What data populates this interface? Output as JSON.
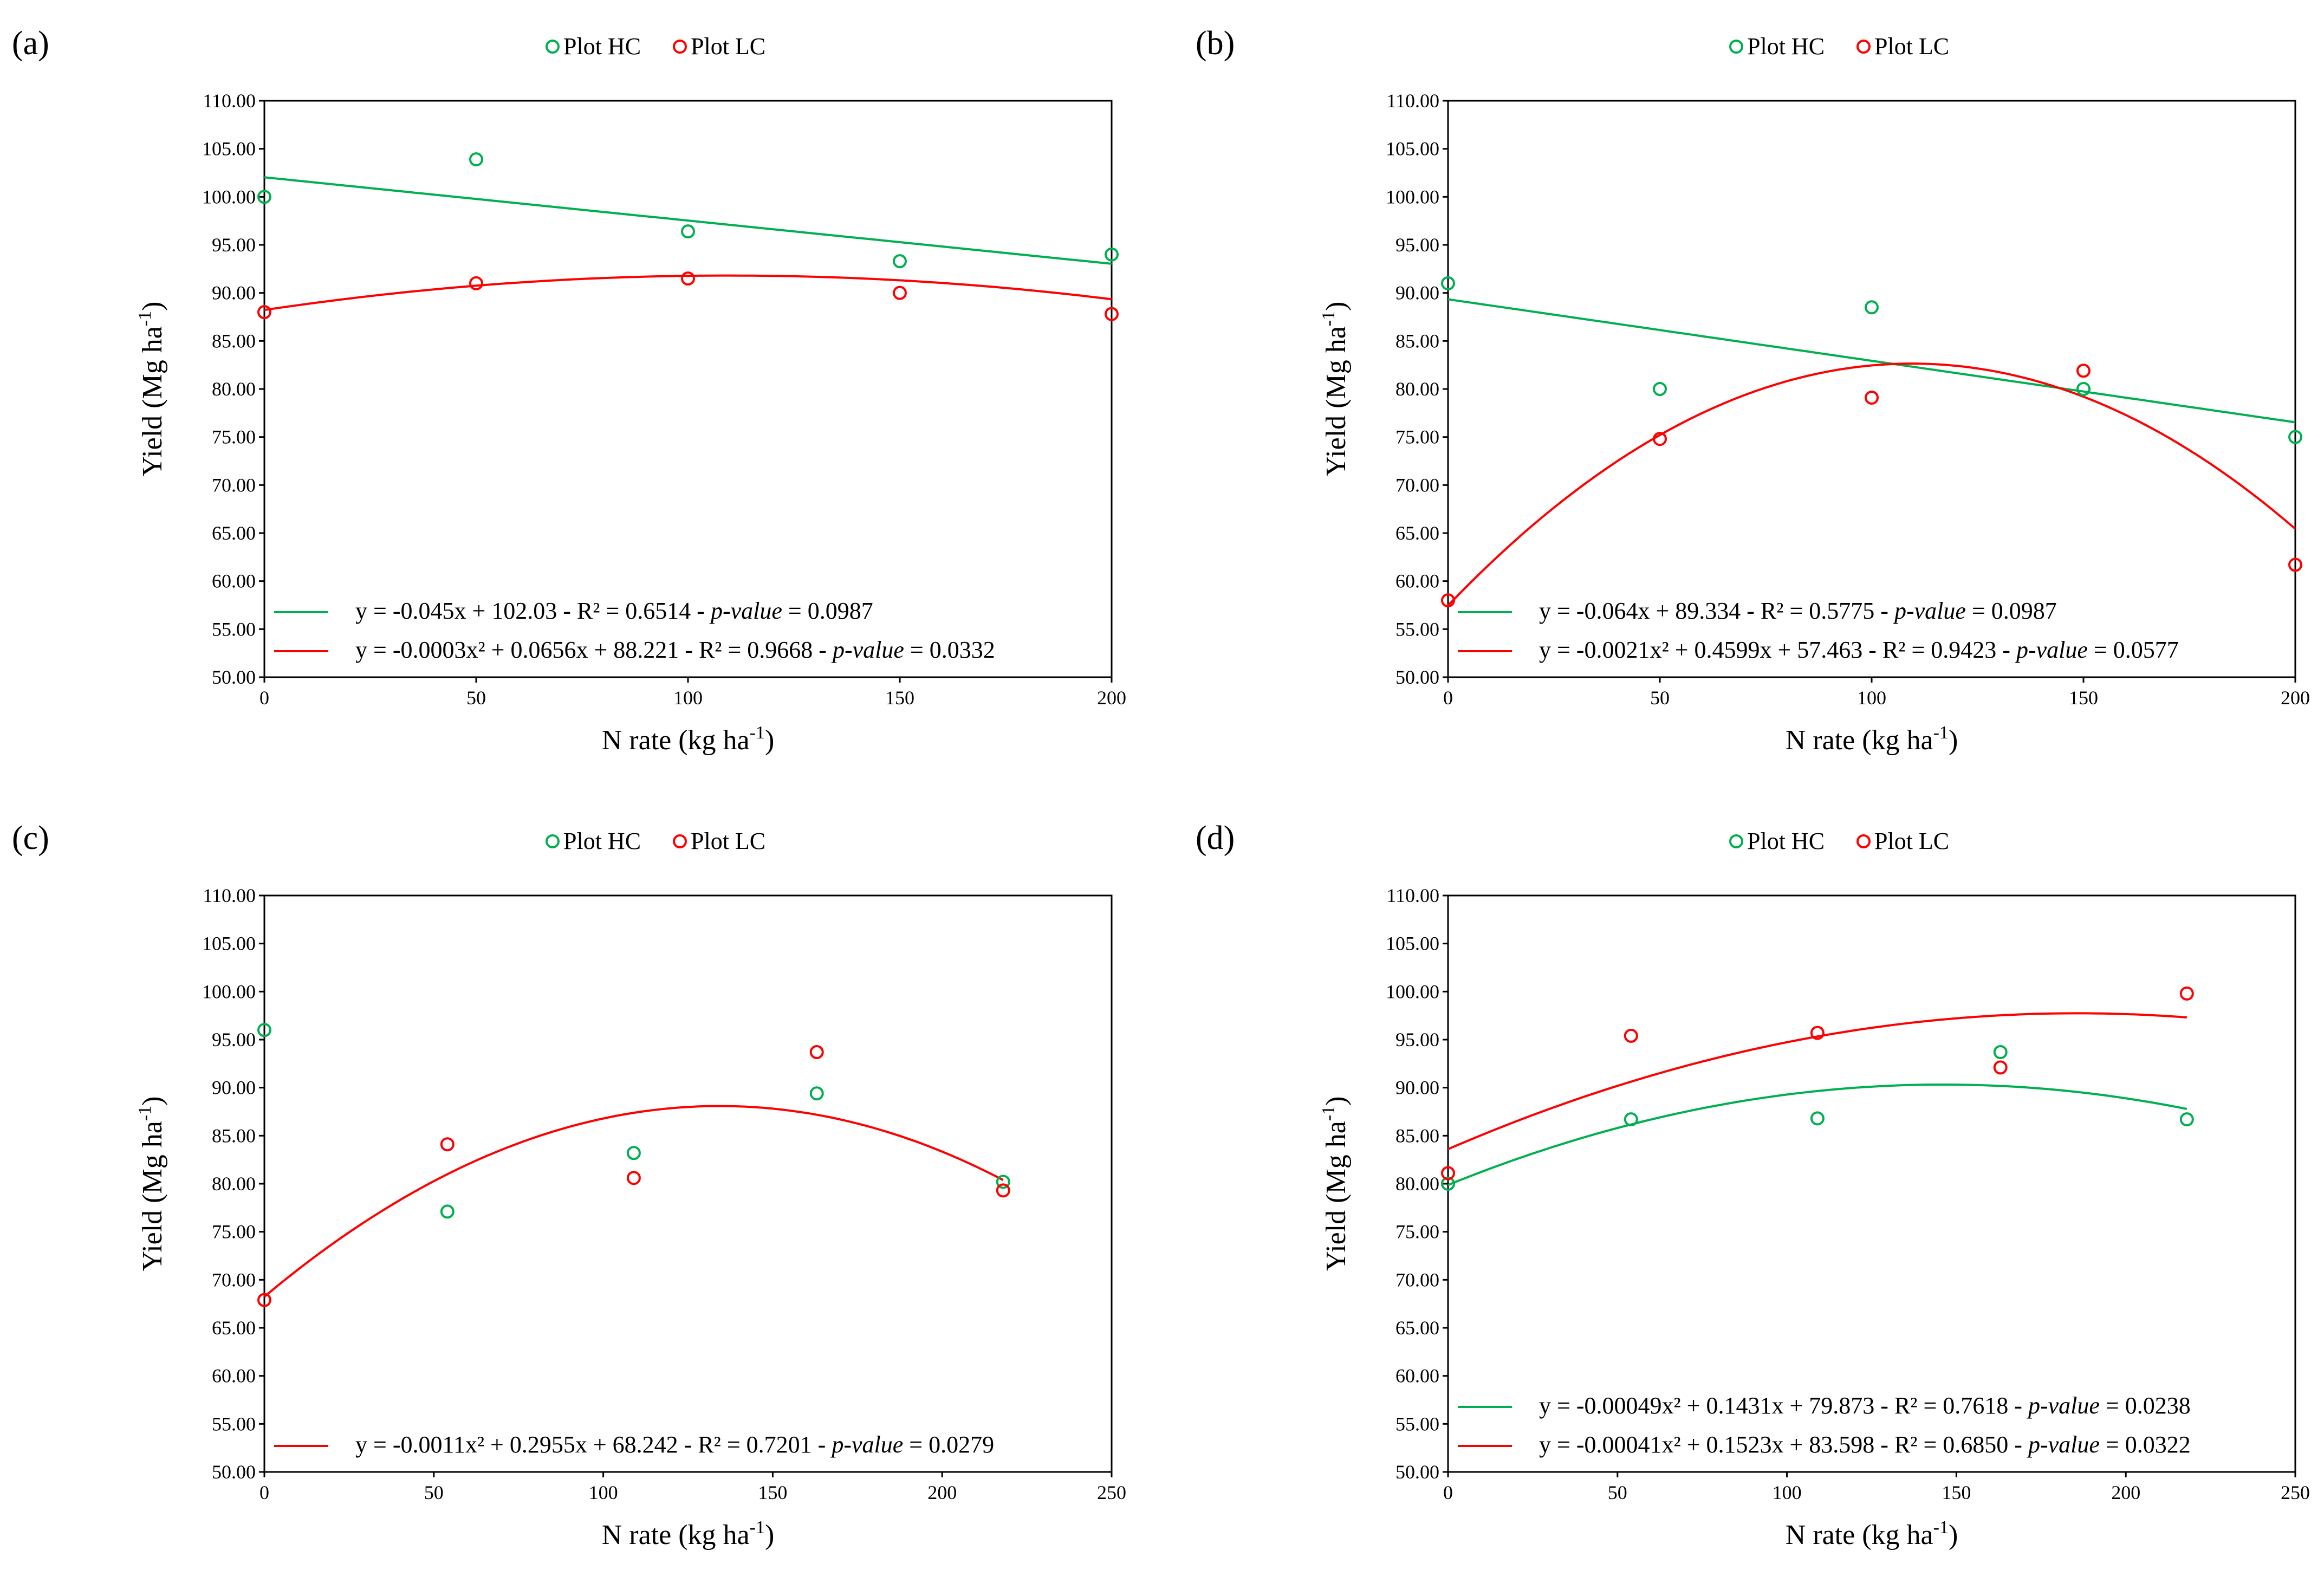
{
  "colors": {
    "hc": "#00b050",
    "lc": "#ff0000",
    "axis": "#000000"
  },
  "legend": {
    "hc": "Plot HC",
    "lc": "Plot LC"
  },
  "axis_titles": {
    "y_main": "Yield (Mg ha",
    "x_main": "N rate (kg ha",
    "unit_sup": "-1",
    "close": ")"
  },
  "chart_data": [
    {
      "label": "(a)",
      "type": "scatter",
      "xlim": [
        0,
        200
      ],
      "xticks": [
        "0",
        "50",
        "100",
        "150",
        "200"
      ],
      "ylim": [
        50,
        110
      ],
      "yticks": [
        "50.00",
        "55.00",
        "60.00",
        "65.00",
        "70.00",
        "75.00",
        "80.00",
        "85.00",
        "90.00",
        "95.00",
        "100.00",
        "105.00",
        "110.00"
      ],
      "series": [
        {
          "name": "Plot HC",
          "color": "hc",
          "x": [
            0,
            50,
            100,
            150,
            200
          ],
          "y": [
            100.0,
            103.9,
            96.4,
            93.3,
            94.0
          ],
          "trend": {
            "kind": "linear",
            "a": 0,
            "b": -0.045,
            "c": 102.03
          }
        },
        {
          "name": "Plot LC",
          "color": "lc",
          "x": [
            0,
            50,
            100,
            150,
            200
          ],
          "y": [
            88.0,
            91.0,
            91.5,
            90.0,
            87.8
          ],
          "trend": {
            "kind": "poly2",
            "a": -0.0003,
            "b": 0.0656,
            "c": 88.221
          }
        }
      ],
      "equations": [
        {
          "color": "hc",
          "main": "y = -0.045x + 102.03 - R² = 0.6514 - ",
          "pv_label": "p-value",
          "pv": " = 0.0987"
        },
        {
          "color": "lc",
          "main": "y = -0.0003x² + 0.0656x + 88.221 - R² = 0.9668 - ",
          "pv_label": "p-value",
          "pv": " = 0.0332"
        }
      ]
    },
    {
      "label": "(b)",
      "type": "scatter",
      "xlim": [
        0,
        200
      ],
      "xticks": [
        "0",
        "50",
        "100",
        "150",
        "200"
      ],
      "ylim": [
        50,
        110
      ],
      "yticks": [
        "50.00",
        "55.00",
        "60.00",
        "65.00",
        "70.00",
        "75.00",
        "80.00",
        "85.00",
        "90.00",
        "95.00",
        "100.00",
        "105.00",
        "110.00"
      ],
      "series": [
        {
          "name": "Plot HC",
          "color": "hc",
          "x": [
            0,
            50,
            100,
            150,
            200
          ],
          "y": [
            91.0,
            80.0,
            88.5,
            80.0,
            75.0
          ],
          "trend": {
            "kind": "linear",
            "a": 0,
            "b": -0.064,
            "c": 89.334
          }
        },
        {
          "name": "Plot LC",
          "color": "lc",
          "x": [
            0,
            50,
            100,
            150,
            200
          ],
          "y": [
            58.0,
            74.8,
            79.1,
            81.9,
            61.7
          ],
          "trend": {
            "kind": "poly2",
            "a": -0.0021,
            "b": 0.4599,
            "c": 57.463
          }
        }
      ],
      "equations": [
        {
          "color": "hc",
          "main": "y = -0.064x + 89.334 - R² = 0.5775 - ",
          "pv_label": "p-value",
          "pv": " = 0.0987"
        },
        {
          "color": "lc",
          "main": "y = -0.0021x² + 0.4599x + 57.463 - R² = 0.9423 - ",
          "pv_label": "p-value",
          "pv": " = 0.0577"
        }
      ]
    },
    {
      "label": "(c)",
      "type": "scatter",
      "xlim": [
        0,
        250
      ],
      "xticks": [
        "0",
        "50",
        "100",
        "150",
        "200",
        "250"
      ],
      "ylim": [
        50,
        110
      ],
      "yticks": [
        "50.00",
        "55.00",
        "60.00",
        "65.00",
        "70.00",
        "75.00",
        "80.00",
        "85.00",
        "90.00",
        "95.00",
        "100.00",
        "105.00",
        "110.00"
      ],
      "series": [
        {
          "name": "Plot HC",
          "color": "hc",
          "x": [
            0,
            54,
            109,
            163,
            218
          ],
          "y": [
            96.0,
            77.1,
            83.2,
            89.4,
            80.2
          ],
          "trend": null
        },
        {
          "name": "Plot LC",
          "color": "lc",
          "x": [
            0,
            54,
            109,
            163,
            218
          ],
          "y": [
            67.9,
            84.1,
            80.6,
            93.7,
            79.3
          ],
          "trend": {
            "kind": "poly2",
            "a": -0.0011,
            "b": 0.2955,
            "c": 68.242
          }
        }
      ],
      "equations": [
        {
          "color": "lc",
          "main": "y = -0.0011x² + 0.2955x + 68.242 - R² = 0.7201 - ",
          "pv_label": "p-value",
          "pv": " = 0.0279"
        }
      ]
    },
    {
      "label": "(d)",
      "type": "scatter",
      "xlim": [
        0,
        250
      ],
      "xticks": [
        "0",
        "50",
        "100",
        "150",
        "200",
        "250"
      ],
      "ylim": [
        50,
        110
      ],
      "yticks": [
        "50.00",
        "55.00",
        "60.00",
        "65.00",
        "70.00",
        "75.00",
        "80.00",
        "85.00",
        "90.00",
        "95.00",
        "100.00",
        "105.00",
        "110.00"
      ],
      "series": [
        {
          "name": "Plot HC",
          "color": "hc",
          "x": [
            0,
            54,
            109,
            163,
            218
          ],
          "y": [
            80.0,
            86.7,
            86.8,
            93.7,
            86.7
          ],
          "trend": {
            "kind": "poly2",
            "a": -0.00049,
            "b": 0.1431,
            "c": 79.873
          }
        },
        {
          "name": "Plot LC",
          "color": "lc",
          "x": [
            0,
            54,
            109,
            163,
            218
          ],
          "y": [
            81.1,
            95.4,
            95.7,
            92.1,
            99.8
          ],
          "trend": {
            "kind": "poly2",
            "a": -0.00041,
            "b": 0.1523,
            "c": 83.598
          }
        }
      ],
      "equations": [
        {
          "color": "hc",
          "main": "y = -0.00049x² + 0.1431x + 79.873 - R² = 0.7618 - ",
          "pv_label": "p-value",
          "pv": " = 0.0238"
        },
        {
          "color": "lc",
          "main": "y = -0.00041x² + 0.1523x + 83.598 - R² = 0.6850 - ",
          "pv_label": "p-value",
          "pv": " = 0.0322"
        }
      ]
    }
  ]
}
